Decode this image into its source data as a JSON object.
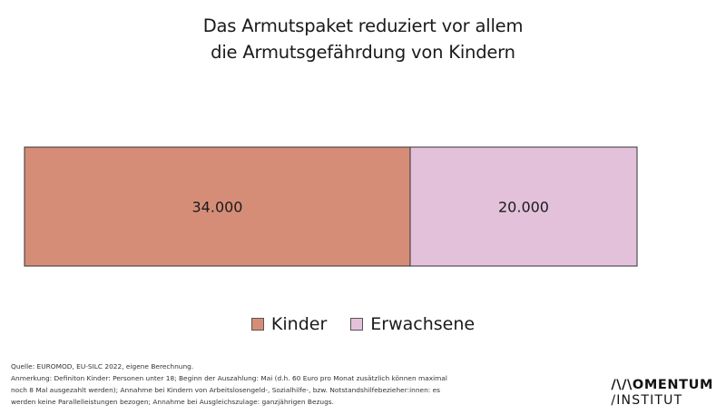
{
  "chart_data": {
    "type": "bar",
    "orientation": "horizontal-stacked",
    "title_lines": [
      "Das Armutspaket reduziert vor allem",
      "die Armutsgefährdung von Kindern"
    ],
    "series": [
      {
        "name": "Kinder",
        "value": 34000,
        "label": "34.000",
        "color": "#d68d78"
      },
      {
        "name": "Erwachsene",
        "value": 20000,
        "label": "20.000",
        "color": "#e3c1db"
      }
    ],
    "legend_position": "bottom-center",
    "grid": false
  },
  "notes": {
    "lines": [
      "Quelle: EUROMOD, EU-SILC 2022, eigene Berechnung.",
      "Anmerkung: Definiton Kinder: Personen unter 18; Beginn der Auszahlung: Mai (d.h. 60 Euro pro Monat zusätzlich können maximal",
      "noch 8 Mal ausgezahlt werden); Annahme bei Kindern von Arbeitslosengeld-, Sozialhilfe-, bzw. Notstandshilfebezieher:innen: es",
      "werden keine Parallelleistungen bezogen; Annahme bei Ausgleichszulage: ganzjährigen Bezugs."
    ]
  },
  "logo": {
    "line1": "/\\/\\OMENTUM",
    "line2": "/INSTITUT"
  }
}
